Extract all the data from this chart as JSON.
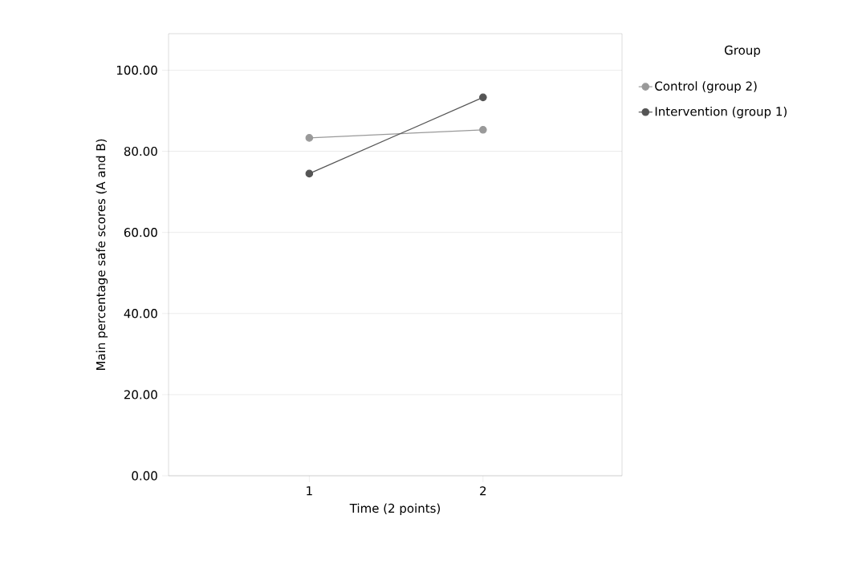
{
  "chart_data": {
    "type": "line",
    "xlabel": "Time (2 points)",
    "ylabel": "Main percentage safe scores (A and B)",
    "legend_title": "Group",
    "categories": [
      "1",
      "2"
    ],
    "series": [
      {
        "name": "Control (group 2)",
        "color": "#999999",
        "values": [
          83.3,
          85.3
        ]
      },
      {
        "name": "Intervention (group 1)",
        "color": "#555555",
        "values": [
          74.5,
          93.3
        ]
      }
    ],
    "ylim": [
      0,
      109
    ],
    "yticks": [
      {
        "value": 0,
        "label": "0.00"
      },
      {
        "value": 20,
        "label": "20.00"
      },
      {
        "value": 40,
        "label": "40.00"
      },
      {
        "value": 60,
        "label": "60.00"
      },
      {
        "value": 80,
        "label": "80.00"
      },
      {
        "value": 100,
        "label": "100.00"
      }
    ],
    "grid": "y",
    "legend": "top right",
    "marker": "circle",
    "line_style": "solid"
  }
}
